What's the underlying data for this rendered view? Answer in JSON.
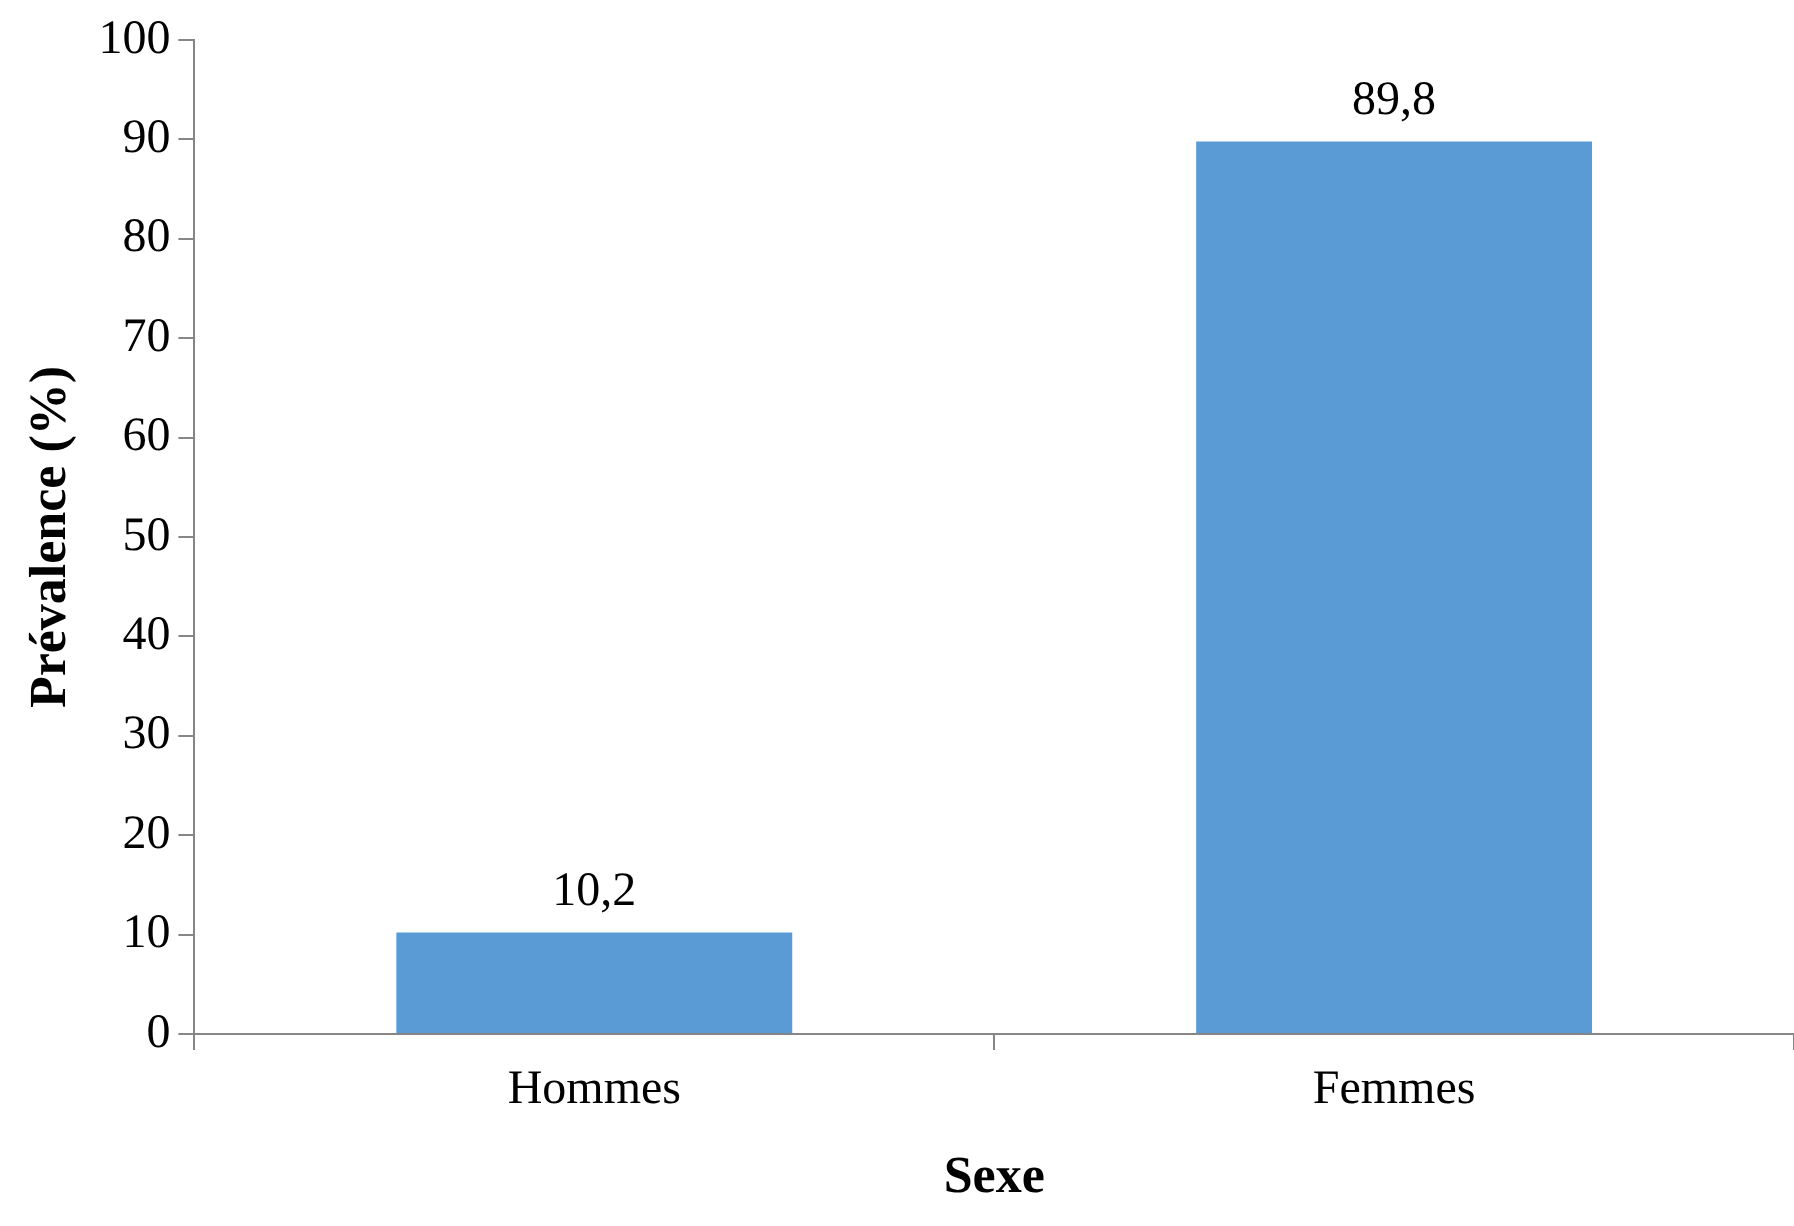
{
  "chart_data": {
    "type": "bar",
    "xlabel": "Sexe",
    "ylabel": "Prévalence (%)",
    "categories": [
      "Hommes",
      "Femmes"
    ],
    "values": [
      10.2,
      89.8
    ],
    "value_labels": [
      "10,2",
      "89,8"
    ],
    "color": "#5b9bd5",
    "ylim": [
      0,
      100
    ],
    "yticks": [
      0,
      10,
      20,
      30,
      40,
      50,
      60,
      70,
      80,
      90,
      100
    ],
    "legend": false
  }
}
